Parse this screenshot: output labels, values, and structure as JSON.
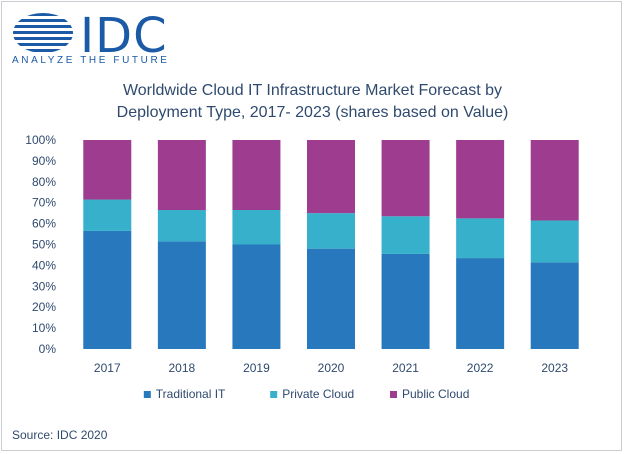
{
  "brand": {
    "name": "IDC",
    "tagline": "ANALYZE THE FUTURE",
    "color": "#1b5aa6"
  },
  "source": "Source: IDC 2020",
  "chart_data": {
    "type": "bar",
    "stacked": true,
    "title": "Worldwide Cloud IT Infrastructure Market Forecast by Deployment Type, 2017- 2023 (shares based on Value)",
    "title_lines": [
      "Worldwide Cloud IT Infrastructure Market Forecast by",
      "Deployment Type, 2017- 2023 (shares based on Value)"
    ],
    "categories": [
      "2017",
      "2018",
      "2019",
      "2020",
      "2021",
      "2022",
      "2023"
    ],
    "series": [
      {
        "name": "Traditional IT",
        "color": "#2878bd",
        "values": [
          56.5,
          51.5,
          50,
          48,
          45.5,
          43.5,
          41.5
        ]
      },
      {
        "name": "Private Cloud",
        "color": "#36b0cb",
        "values": [
          15,
          15,
          16.5,
          17,
          18,
          19,
          20
        ]
      },
      {
        "name": "Public Cloud",
        "color": "#9e3c8f",
        "values": [
          28.5,
          33.5,
          33.5,
          35,
          36.5,
          37.5,
          38.5
        ]
      }
    ],
    "ylim": [
      0,
      100
    ],
    "yticks": [
      "0%",
      "10%",
      "20%",
      "30%",
      "40%",
      "50%",
      "60%",
      "70%",
      "80%",
      "90%",
      "100%"
    ],
    "xlabel": "",
    "ylabel": "",
    "grid": false,
    "legend": "bottom"
  }
}
